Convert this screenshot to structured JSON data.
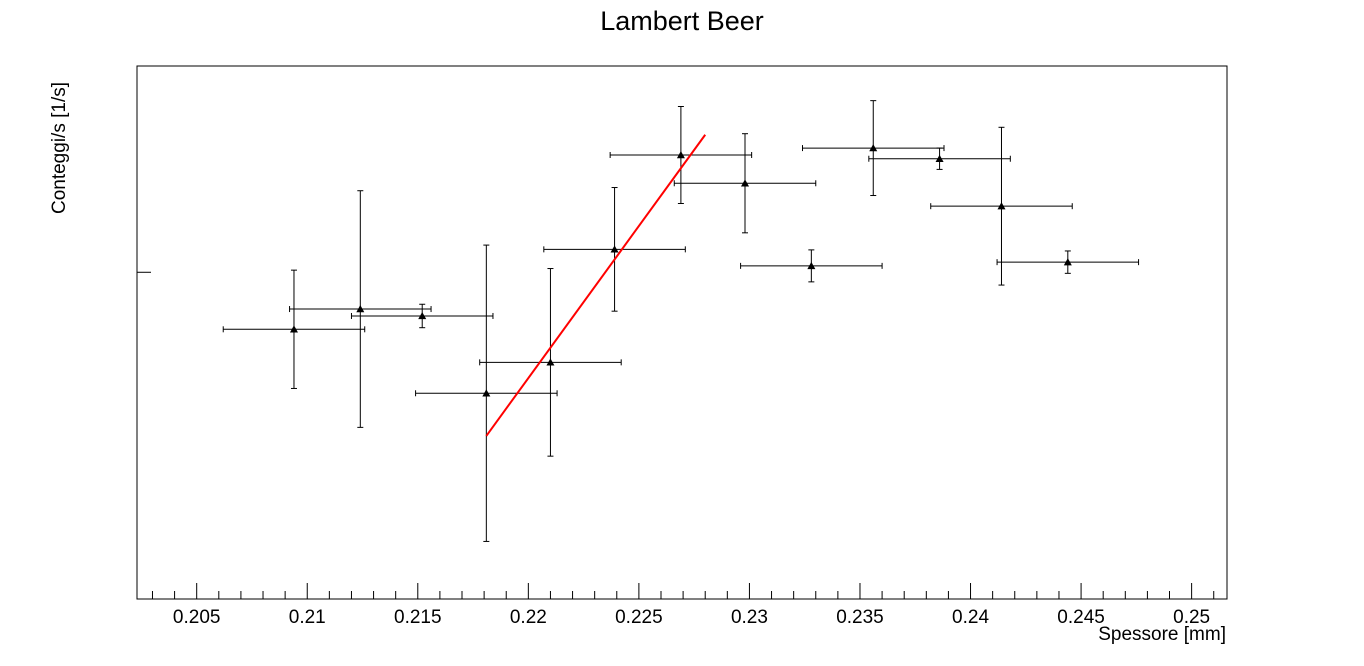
{
  "chart_data": {
    "type": "scatter",
    "title": "Lambert Beer",
    "xlabel": "Spessore [mm]",
    "ylabel": "Conteggi/s [1/s]",
    "xlim": [
      0.2023,
      0.2516
    ],
    "ylim": [
      0,
      1
    ],
    "x_ticks": [
      0.205,
      0.21,
      0.215,
      0.22,
      0.225,
      0.23,
      0.235,
      0.24,
      0.245,
      0.25
    ],
    "x_tick_labels": [
      "0.205",
      "0.21",
      "0.215",
      "0.22",
      "0.225",
      "0.23",
      "0.235",
      "0.24",
      "0.245",
      "0.25"
    ],
    "y_major_tick": 0.613,
    "grid": false,
    "legend": "none",
    "marker": "triangle",
    "colors": {
      "points": "#000000",
      "fit": "#ff0000"
    },
    "points": [
      {
        "x": 0.2094,
        "y": 0.506,
        "ex": 0.0032,
        "ey": 0.111
      },
      {
        "x": 0.2124,
        "y": 0.544,
        "ex": 0.0032,
        "ey": 0.222
      },
      {
        "x": 0.2152,
        "y": 0.531,
        "ex": 0.0032,
        "ey": 0.022
      },
      {
        "x": 0.2181,
        "y": 0.386,
        "ex": 0.0032,
        "ey": 0.278
      },
      {
        "x": 0.221,
        "y": 0.444,
        "ex": 0.0032,
        "ey": 0.176
      },
      {
        "x": 0.2239,
        "y": 0.656,
        "ex": 0.0032,
        "ey": 0.116
      },
      {
        "x": 0.2269,
        "y": 0.833,
        "ex": 0.0032,
        "ey": 0.091
      },
      {
        "x": 0.2298,
        "y": 0.78,
        "ex": 0.0032,
        "ey": 0.093
      },
      {
        "x": 0.2328,
        "y": 0.625,
        "ex": 0.0032,
        "ey": 0.03
      },
      {
        "x": 0.2356,
        "y": 0.846,
        "ex": 0.0032,
        "ey": 0.089
      },
      {
        "x": 0.2386,
        "y": 0.826,
        "ex": 0.0032,
        "ey": 0.02
      },
      {
        "x": 0.2414,
        "y": 0.737,
        "ex": 0.0032,
        "ey": 0.148
      },
      {
        "x": 0.2444,
        "y": 0.632,
        "ex": 0.0032,
        "ey": 0.021
      }
    ],
    "fit": {
      "x_start": 0.2181,
      "y_start": 0.306,
      "x_end": 0.228,
      "y_end": 0.871
    }
  }
}
